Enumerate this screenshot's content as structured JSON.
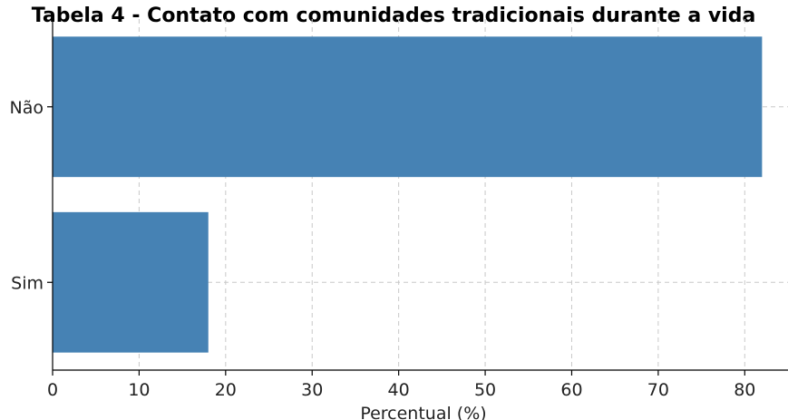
{
  "chart_data": {
    "type": "bar",
    "orientation": "horizontal",
    "title": "Tabela 4 - Contato com comunidades tradicionais durante a vida",
    "categories": [
      "Não",
      "Sim"
    ],
    "values": [
      82,
      18
    ],
    "xlabel": "Percentual (%)",
    "ylabel": "",
    "xlim": [
      0,
      85
    ],
    "xticks": [
      0,
      10,
      20,
      30,
      40,
      50,
      60,
      70,
      80
    ],
    "grid": true,
    "bar_color": "#4682b4"
  }
}
